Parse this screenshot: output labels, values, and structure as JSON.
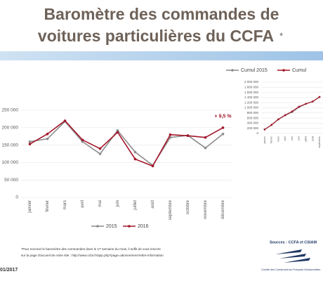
{
  "slide": {
    "title_lines": [
      "Baromètre des commandes de",
      "voitures particulières du CCFA"
    ],
    "title_mark": "*",
    "note_lines": [
      "*Pour recevoir le baromètre des commandes dans le 1ᵉʳ semaine du mois, il suffit de vous inscrire",
      "sur la page d'accueil de notre site : http://www.ccfa.fr/spip.php?page=abonnement-lettre-information"
    ],
    "sources": "Sources : CCFA et CSIAM",
    "date": "01/2017",
    "organization": "Comité des Constructeurs Français d'Automobiles"
  },
  "chart_data": [
    {
      "type": "line",
      "categories": [
        "janvier",
        "février",
        "mars",
        "avril",
        "mai",
        "juin",
        "juillet",
        "août",
        "septembre",
        "octobre",
        "novembre",
        "décembre"
      ],
      "series": [
        {
          "name": "2015",
          "color": "#8c8c8c",
          "values": [
            160000,
            168000,
            218000,
            160000,
            125000,
            192000,
            130000,
            92000,
            172000,
            178000,
            142000,
            182000
          ]
        },
        {
          "name": "2016",
          "color": "#a3162a",
          "values": [
            153000,
            182000,
            220000,
            165000,
            140000,
            187000,
            110000,
            90000,
            180000,
            177000,
            172000,
            200000
          ]
        }
      ],
      "annotation": "+ 9,5 %",
      "ylim": [
        0,
        250000
      ],
      "yticks": [
        {
          "value": 0,
          "label": "0"
        },
        {
          "value": 50000,
          "label": "50 000"
        },
        {
          "value": 100000,
          "label": "100 000"
        },
        {
          "value": 150000,
          "label": "150 000"
        },
        {
          "value": 200000,
          "label": "200 000"
        },
        {
          "value": 250000,
          "label": "250 000"
        }
      ],
      "grid": true,
      "legend": "bottom"
    },
    {
      "type": "line",
      "categories": [
        "janvier",
        "février",
        "mars",
        "avril",
        "mai",
        "juin",
        "juillet",
        "août",
        "septembre"
      ],
      "series": [
        {
          "name": "Cumul 2015",
          "color": "#8c8c8c",
          "values": [
            160000,
            328000,
            546000,
            706000,
            831000,
            1023000,
            1153000,
            1245000,
            1417000
          ]
        },
        {
          "name": "Cumul",
          "color": "#a3162a",
          "values": [
            153000,
            335000,
            555000,
            720000,
            860000,
            1047000,
            1157000,
            1247000,
            1427000
          ]
        }
      ],
      "ylim": [
        0,
        2000000
      ],
      "yticks": [
        {
          "value": 0,
          "label": "0"
        },
        {
          "value": 200000,
          "label": "200 000"
        },
        {
          "value": 400000,
          "label": "400 000"
        },
        {
          "value": 600000,
          "label": "600 000"
        },
        {
          "value": 800000,
          "label": "800 000"
        },
        {
          "value": 1000000,
          "label": "1 000 000"
        },
        {
          "value": 1200000,
          "label": "1 200 000"
        },
        {
          "value": 1400000,
          "label": "1 400 000"
        },
        {
          "value": 1600000,
          "label": "1 600 000"
        },
        {
          "value": 1800000,
          "label": "1 800 000"
        },
        {
          "value": 2000000,
          "label": "2 000 000"
        }
      ],
      "grid": true,
      "legend": "top"
    }
  ]
}
